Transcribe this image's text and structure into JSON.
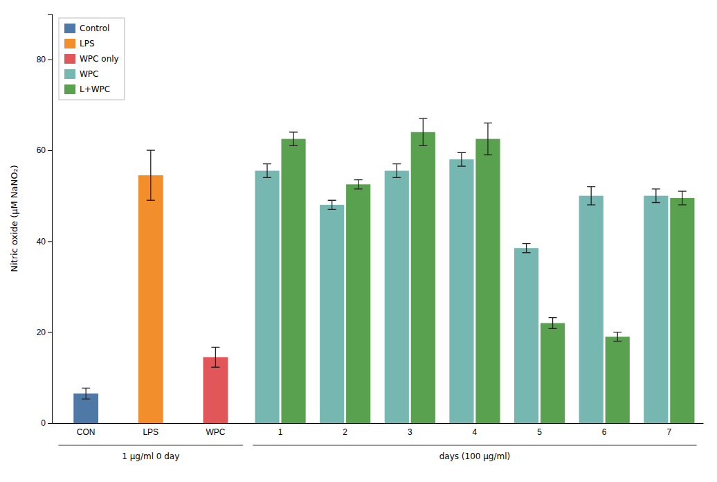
{
  "chart_data": {
    "type": "bar",
    "ylabel": "Nitric oxide (μM NaNO₂)",
    "categories": [
      "CON",
      "LPS",
      "WPC",
      "1",
      "2",
      "3",
      "4",
      "5",
      "6",
      "7"
    ],
    "series": [
      {
        "name": "Control",
        "values": [
          6.5,
          null,
          null,
          null,
          null,
          null,
          null,
          null,
          null,
          null
        ],
        "errors": [
          1.2,
          null,
          null,
          null,
          null,
          null,
          null,
          null,
          null,
          null
        ]
      },
      {
        "name": "LPS",
        "values": [
          null,
          54.5,
          null,
          null,
          null,
          null,
          null,
          null,
          null,
          null
        ],
        "errors": [
          null,
          5.5,
          null,
          null,
          null,
          null,
          null,
          null,
          null,
          null
        ]
      },
      {
        "name": "WPC only",
        "values": [
          null,
          null,
          14.5,
          null,
          null,
          null,
          null,
          null,
          null,
          null
        ],
        "errors": [
          null,
          null,
          2.2,
          null,
          null,
          null,
          null,
          null,
          null,
          null
        ]
      },
      {
        "name": "WPC",
        "values": [
          null,
          null,
          null,
          55.5,
          48.0,
          55.5,
          58.0,
          38.5,
          50.0,
          50.0
        ],
        "errors": [
          null,
          null,
          null,
          1.5,
          1.0,
          1.5,
          1.5,
          1.0,
          2.0,
          1.5
        ]
      },
      {
        "name": "L+WPC",
        "values": [
          null,
          null,
          null,
          62.5,
          52.5,
          64.0,
          62.5,
          22.0,
          19.0,
          49.5
        ],
        "errors": [
          null,
          null,
          null,
          1.5,
          1.0,
          3.0,
          3.5,
          1.2,
          1.0,
          1.5
        ]
      }
    ],
    "annotations": [
      {
        "text": "1 μg/ml 0 day",
        "from": "CON",
        "to": "WPC"
      },
      {
        "text": "days (100 μg/ml)",
        "from": "1",
        "to": "7"
      }
    ],
    "ylim": [
      0,
      90
    ],
    "yticks": [
      0,
      20,
      40,
      60,
      80
    ],
    "grid": false,
    "legend": "upper left"
  }
}
